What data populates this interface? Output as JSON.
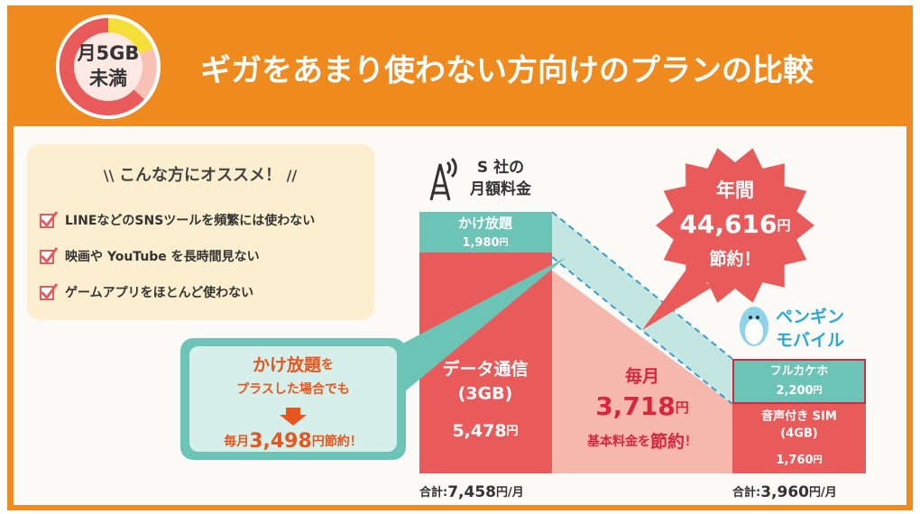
{
  "header": {
    "badge": {
      "line1": "月5GB",
      "line2": "未満"
    },
    "title": "ギガをあまり使わない方向けのプランの比較"
  },
  "recommend": {
    "title": "こんな方にオススメ！",
    "items": [
      "LINEなどのSNSツールを頻繁には使わない",
      "映画や YouTube を長時間見ない",
      "ゲームアプリをほとんど使わない"
    ]
  },
  "s_company": {
    "label": [
      "S 社の",
      "月額料金"
    ],
    "call": {
      "name": "かけ放題",
      "amount": "1,980",
      "unit": "円"
    },
    "data": {
      "name": "データ通信",
      "size": "(3GB)",
      "amount": "5,478",
      "unit": "円"
    },
    "total": {
      "prefix": "合計:",
      "amount": "7,458",
      "unit": "円/月"
    }
  },
  "penguin": {
    "logo": [
      "ペンギン",
      "モバイル"
    ],
    "call": {
      "name": "フルカケホ",
      "amount": "2,200",
      "unit": "円"
    },
    "sim": {
      "name": "音声付き SIM",
      "size": "(4GB)",
      "amount": "1,760",
      "unit": "円"
    },
    "total": {
      "prefix": "合計:",
      "amount": "3,960",
      "unit": "円/月"
    }
  },
  "monthly_saving": {
    "prefix": "毎月",
    "amount": "3,718",
    "unit": "円",
    "note": [
      "基本料金を",
      "節約",
      "！"
    ]
  },
  "annual_saving": {
    "prefix": "年間",
    "amount": "44,616",
    "unit": "円",
    "suffix": "節約！"
  },
  "callout": {
    "line1": [
      "かけ放題",
      "を"
    ],
    "line2": "プラスした場合でも",
    "prefix": "毎月",
    "amount": "3,498",
    "unit": "円",
    "suffix": "節約！"
  }
}
